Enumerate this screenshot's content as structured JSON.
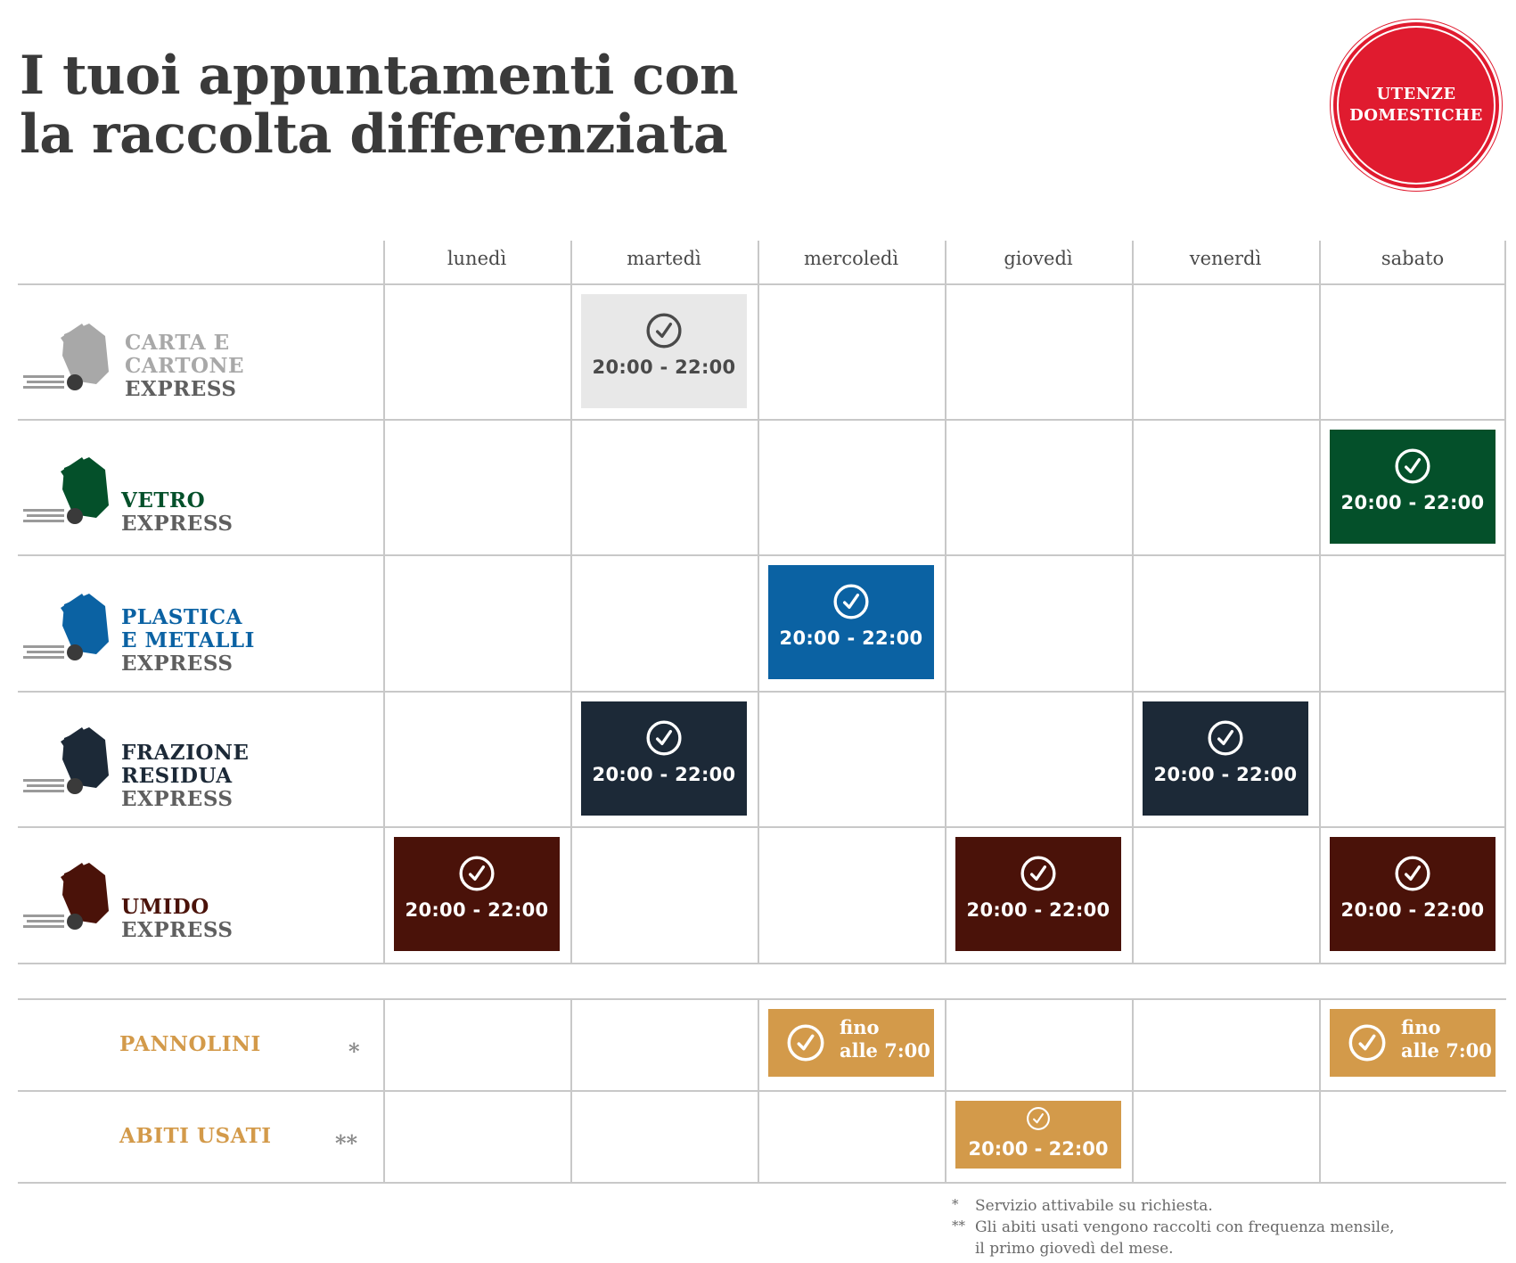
{
  "title": {
    "line1": "I tuoi appuntamenti con",
    "line2": "la raccolta differenziata"
  },
  "badge": {
    "line1": "UTENZE",
    "line2": "DOMESTICHE",
    "color": "#e01b2f"
  },
  "days": [
    "lunedì",
    "martedì",
    "mercoledì",
    "giovedì",
    "venerdì",
    "sabato"
  ],
  "categories": [
    {
      "name1": "CARTA E",
      "name2": "CARTONE",
      "express": "EXPRESS",
      "color": "#a8a8a8",
      "icon": "paper-bin-icon"
    },
    {
      "name1": "VETRO",
      "name2": "",
      "express": "EXPRESS",
      "color": "#04502a",
      "icon": "glass-bin-icon"
    },
    {
      "name1": "PLASTICA",
      "name2": "E METALLI",
      "express": "EXPRESS",
      "color": "#0b62a3",
      "icon": "plastic-bin-icon"
    },
    {
      "name1": "FRAZIONE",
      "name2": "RESIDUA",
      "express": "EXPRESS",
      "color": "#1c2937",
      "icon": "residual-bin-icon"
    },
    {
      "name1": "UMIDO",
      "name2": "",
      "express": "EXPRESS",
      "color": "#4a1209",
      "icon": "organic-bin-icon"
    }
  ],
  "slot_time": "20:00 - 22:00",
  "schedule": [
    {
      "category": 0,
      "day": "martedì",
      "time": "20:00 - 22:00",
      "color": "#e8e8e8",
      "text_color": "#4a4a4a"
    },
    {
      "category": 1,
      "day": "sabato",
      "time": "20:00 - 22:00",
      "color": "#04502a"
    },
    {
      "category": 2,
      "day": "mercoledì",
      "time": "20:00 - 22:00",
      "color": "#0b62a3"
    },
    {
      "category": 3,
      "day": "martedì",
      "time": "20:00 - 22:00",
      "color": "#1c2937"
    },
    {
      "category": 3,
      "day": "venerdì",
      "time": "20:00 - 22:00",
      "color": "#1c2937"
    },
    {
      "category": 4,
      "day": "lunedì",
      "time": "20:00 - 22:00",
      "color": "#4a1209"
    },
    {
      "category": 4,
      "day": "giovedì",
      "time": "20:00 - 22:00",
      "color": "#4a1209"
    },
    {
      "category": 4,
      "day": "sabato",
      "time": "20:00 - 22:00",
      "color": "#4a1209"
    }
  ],
  "extras": {
    "pannolini": {
      "label": "PANNOLINI",
      "mark": "*",
      "days": [
        "mercoledì",
        "sabato"
      ],
      "line1": "fino",
      "line2": "alle 7:00",
      "color": "#d39a4a"
    },
    "abiti": {
      "label": "ABITI USATI",
      "mark": "**",
      "days": [
        "giovedì"
      ],
      "time": "20:00 - 22:00",
      "color": "#d39a4a"
    }
  },
  "notes": {
    "n1_sym": "*",
    "n1": "Servizio attivabile su richiesta.",
    "n2_sym": "**",
    "n2a": "Gli abiti usati vengono raccolti con frequenza mensile,",
    "n2b": "il primo giovedì del mese."
  }
}
